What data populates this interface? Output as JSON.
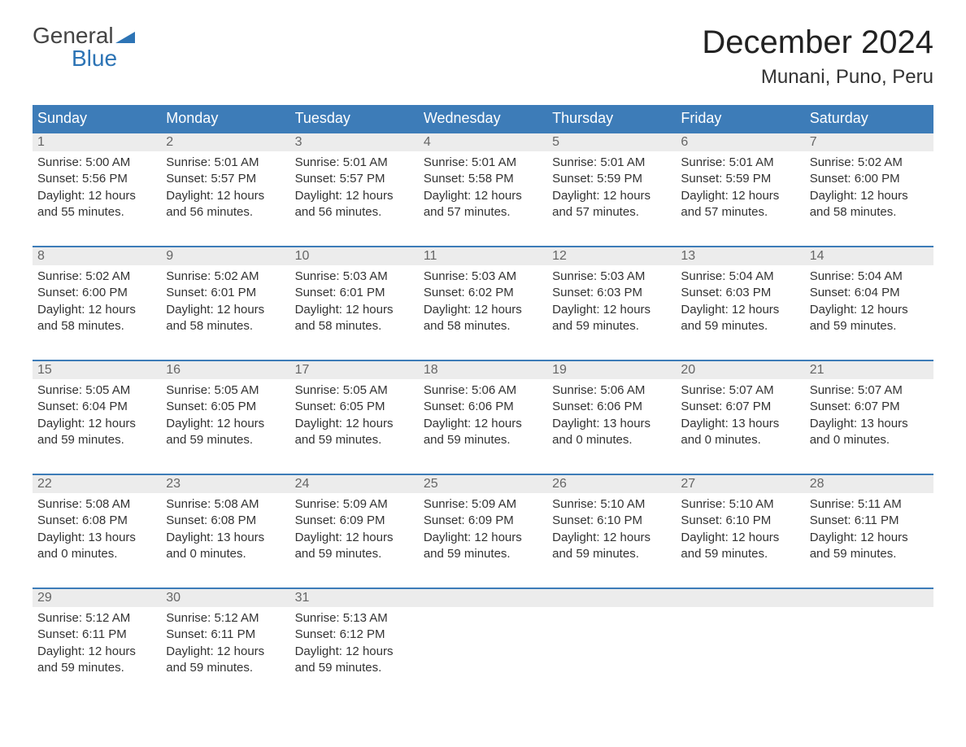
{
  "logo": {
    "top": "General",
    "bottom": "Blue",
    "flag_color": "#2d74b5"
  },
  "title": "December 2024",
  "location": "Munani, Puno, Peru",
  "colors": {
    "header_bg": "#3d7cb8",
    "header_text": "#ffffff",
    "daynum_bg": "#ececec",
    "daynum_text": "#666666",
    "body_text": "#333333",
    "row_border": "#3d7cb8"
  },
  "day_names": [
    "Sunday",
    "Monday",
    "Tuesday",
    "Wednesday",
    "Thursday",
    "Friday",
    "Saturday"
  ],
  "weeks": [
    [
      {
        "n": "1",
        "sunrise": "Sunrise: 5:00 AM",
        "sunset": "Sunset: 5:56 PM",
        "d1": "Daylight: 12 hours",
        "d2": "and 55 minutes."
      },
      {
        "n": "2",
        "sunrise": "Sunrise: 5:01 AM",
        "sunset": "Sunset: 5:57 PM",
        "d1": "Daylight: 12 hours",
        "d2": "and 56 minutes."
      },
      {
        "n": "3",
        "sunrise": "Sunrise: 5:01 AM",
        "sunset": "Sunset: 5:57 PM",
        "d1": "Daylight: 12 hours",
        "d2": "and 56 minutes."
      },
      {
        "n": "4",
        "sunrise": "Sunrise: 5:01 AM",
        "sunset": "Sunset: 5:58 PM",
        "d1": "Daylight: 12 hours",
        "d2": "and 57 minutes."
      },
      {
        "n": "5",
        "sunrise": "Sunrise: 5:01 AM",
        "sunset": "Sunset: 5:59 PM",
        "d1": "Daylight: 12 hours",
        "d2": "and 57 minutes."
      },
      {
        "n": "6",
        "sunrise": "Sunrise: 5:01 AM",
        "sunset": "Sunset: 5:59 PM",
        "d1": "Daylight: 12 hours",
        "d2": "and 57 minutes."
      },
      {
        "n": "7",
        "sunrise": "Sunrise: 5:02 AM",
        "sunset": "Sunset: 6:00 PM",
        "d1": "Daylight: 12 hours",
        "d2": "and 58 minutes."
      }
    ],
    [
      {
        "n": "8",
        "sunrise": "Sunrise: 5:02 AM",
        "sunset": "Sunset: 6:00 PM",
        "d1": "Daylight: 12 hours",
        "d2": "and 58 minutes."
      },
      {
        "n": "9",
        "sunrise": "Sunrise: 5:02 AM",
        "sunset": "Sunset: 6:01 PM",
        "d1": "Daylight: 12 hours",
        "d2": "and 58 minutes."
      },
      {
        "n": "10",
        "sunrise": "Sunrise: 5:03 AM",
        "sunset": "Sunset: 6:01 PM",
        "d1": "Daylight: 12 hours",
        "d2": "and 58 minutes."
      },
      {
        "n": "11",
        "sunrise": "Sunrise: 5:03 AM",
        "sunset": "Sunset: 6:02 PM",
        "d1": "Daylight: 12 hours",
        "d2": "and 58 minutes."
      },
      {
        "n": "12",
        "sunrise": "Sunrise: 5:03 AM",
        "sunset": "Sunset: 6:03 PM",
        "d1": "Daylight: 12 hours",
        "d2": "and 59 minutes."
      },
      {
        "n": "13",
        "sunrise": "Sunrise: 5:04 AM",
        "sunset": "Sunset: 6:03 PM",
        "d1": "Daylight: 12 hours",
        "d2": "and 59 minutes."
      },
      {
        "n": "14",
        "sunrise": "Sunrise: 5:04 AM",
        "sunset": "Sunset: 6:04 PM",
        "d1": "Daylight: 12 hours",
        "d2": "and 59 minutes."
      }
    ],
    [
      {
        "n": "15",
        "sunrise": "Sunrise: 5:05 AM",
        "sunset": "Sunset: 6:04 PM",
        "d1": "Daylight: 12 hours",
        "d2": "and 59 minutes."
      },
      {
        "n": "16",
        "sunrise": "Sunrise: 5:05 AM",
        "sunset": "Sunset: 6:05 PM",
        "d1": "Daylight: 12 hours",
        "d2": "and 59 minutes."
      },
      {
        "n": "17",
        "sunrise": "Sunrise: 5:05 AM",
        "sunset": "Sunset: 6:05 PM",
        "d1": "Daylight: 12 hours",
        "d2": "and 59 minutes."
      },
      {
        "n": "18",
        "sunrise": "Sunrise: 5:06 AM",
        "sunset": "Sunset: 6:06 PM",
        "d1": "Daylight: 12 hours",
        "d2": "and 59 minutes."
      },
      {
        "n": "19",
        "sunrise": "Sunrise: 5:06 AM",
        "sunset": "Sunset: 6:06 PM",
        "d1": "Daylight: 13 hours",
        "d2": "and 0 minutes."
      },
      {
        "n": "20",
        "sunrise": "Sunrise: 5:07 AM",
        "sunset": "Sunset: 6:07 PM",
        "d1": "Daylight: 13 hours",
        "d2": "and 0 minutes."
      },
      {
        "n": "21",
        "sunrise": "Sunrise: 5:07 AM",
        "sunset": "Sunset: 6:07 PM",
        "d1": "Daylight: 13 hours",
        "d2": "and 0 minutes."
      }
    ],
    [
      {
        "n": "22",
        "sunrise": "Sunrise: 5:08 AM",
        "sunset": "Sunset: 6:08 PM",
        "d1": "Daylight: 13 hours",
        "d2": "and 0 minutes."
      },
      {
        "n": "23",
        "sunrise": "Sunrise: 5:08 AM",
        "sunset": "Sunset: 6:08 PM",
        "d1": "Daylight: 13 hours",
        "d2": "and 0 minutes."
      },
      {
        "n": "24",
        "sunrise": "Sunrise: 5:09 AM",
        "sunset": "Sunset: 6:09 PM",
        "d1": "Daylight: 12 hours",
        "d2": "and 59 minutes."
      },
      {
        "n": "25",
        "sunrise": "Sunrise: 5:09 AM",
        "sunset": "Sunset: 6:09 PM",
        "d1": "Daylight: 12 hours",
        "d2": "and 59 minutes."
      },
      {
        "n": "26",
        "sunrise": "Sunrise: 5:10 AM",
        "sunset": "Sunset: 6:10 PM",
        "d1": "Daylight: 12 hours",
        "d2": "and 59 minutes."
      },
      {
        "n": "27",
        "sunrise": "Sunrise: 5:10 AM",
        "sunset": "Sunset: 6:10 PM",
        "d1": "Daylight: 12 hours",
        "d2": "and 59 minutes."
      },
      {
        "n": "28",
        "sunrise": "Sunrise: 5:11 AM",
        "sunset": "Sunset: 6:11 PM",
        "d1": "Daylight: 12 hours",
        "d2": "and 59 minutes."
      }
    ],
    [
      {
        "n": "29",
        "sunrise": "Sunrise: 5:12 AM",
        "sunset": "Sunset: 6:11 PM",
        "d1": "Daylight: 12 hours",
        "d2": "and 59 minutes."
      },
      {
        "n": "30",
        "sunrise": "Sunrise: 5:12 AM",
        "sunset": "Sunset: 6:11 PM",
        "d1": "Daylight: 12 hours",
        "d2": "and 59 minutes."
      },
      {
        "n": "31",
        "sunrise": "Sunrise: 5:13 AM",
        "sunset": "Sunset: 6:12 PM",
        "d1": "Daylight: 12 hours",
        "d2": "and 59 minutes."
      },
      null,
      null,
      null,
      null
    ]
  ]
}
